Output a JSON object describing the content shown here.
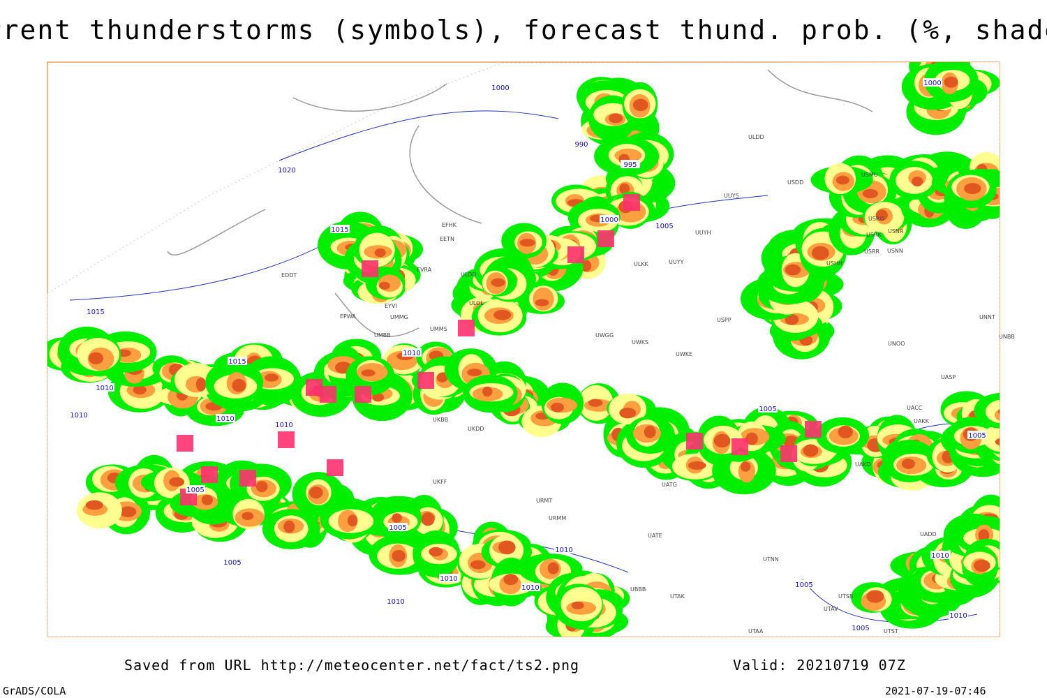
{
  "header": {
    "title": "Current thunderstorms (symbols), forecast thund. prob. (%, shaded)"
  },
  "map": {
    "isobar_labels": [
      1000,
      990,
      995,
      1000,
      1005,
      1020,
      1015,
      1015,
      1015,
      1010,
      1010,
      1010,
      1010,
      1010,
      1005,
      1005,
      1005,
      1010,
      1010,
      1010,
      1010,
      1005,
      1005,
      1005,
      1005,
      1010,
      1010,
      1000
    ],
    "stations": [
      "EFHK",
      "EETN",
      "EVRA",
      "ULOD",
      "ULOL",
      "EYVI",
      "UMMG",
      "EPWA",
      "UMBB",
      "UMMS",
      "EDDT",
      "UUYY",
      "ULKK",
      "UWGG",
      "UWKS",
      "UWKE",
      "USPP",
      "ULDD",
      "USDD",
      "USMU",
      "USRO",
      "USRK",
      "USNR",
      "USRR",
      "USNN",
      "USHH",
      "UNNT",
      "UNBB",
      "UNOO",
      "UASP",
      "UACC",
      "UAKK",
      "UAKD",
      "UATG",
      "UATE",
      "UTNN",
      "UTAK",
      "UTAA",
      "UTSB",
      "UTAV",
      "UTST",
      "UADD",
      "UBBB",
      "URMT",
      "URMM",
      "UKFF",
      "UKDD",
      "UKBB",
      "UUYH",
      "UUYS"
    ]
  },
  "footer": {
    "source": "Saved from URL http://meteocenter.net/fact/ts2.png",
    "valid": "Valid: 20210719 07Z",
    "software": "GrADS/COLA",
    "timestamp": "2021-07-19-07:46"
  }
}
